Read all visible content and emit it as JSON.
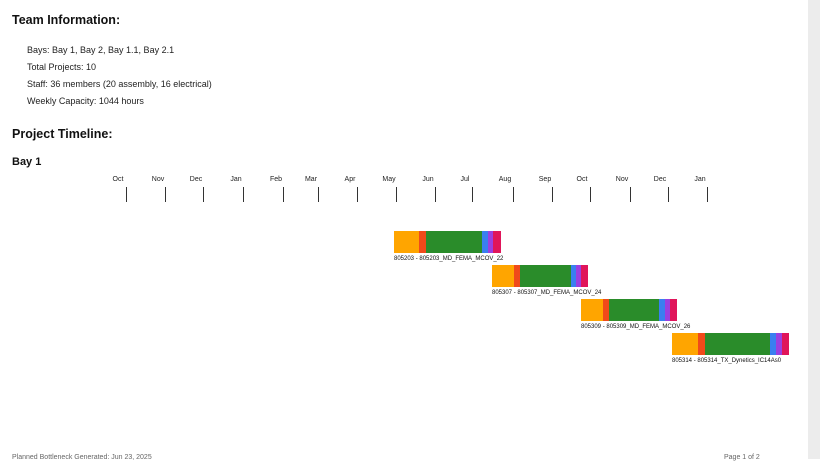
{
  "team": {
    "heading": "Team Information:",
    "bays": "Bays: Bay 1, Bay 2, Bay 1.1, Bay 2.1",
    "projects": "Total Projects: 10",
    "staff": "Staff: 36 members (20 assembly, 16 electrical)",
    "capacity": "Weekly Capacity: 1044 hours"
  },
  "timeline": {
    "heading": "Project Timeline:",
    "bay": "Bay 1",
    "months": [
      "Oct",
      "Nov",
      "Dec",
      "Jan",
      "Feb",
      "Mar",
      "Apr",
      "May",
      "Jun",
      "Jul",
      "Aug",
      "Sep",
      "Oct",
      "Nov",
      "Dec",
      "Jan"
    ]
  },
  "colors": {
    "phase1": "#ffa500",
    "phase2": "#f04a1a",
    "phase3": "#2a8c2a",
    "phase4": "#3a7ff0",
    "phase5": "#9b3fe0",
    "phase6": "#e0155a"
  },
  "projects": [
    {
      "label": "805203 - 805203_MD_FEMA_MCOV_22"
    },
    {
      "label": "805307 - 805307_MD_FEMA_MCOV_24"
    },
    {
      "label": "805309 - 805309_MD_FEMA_MCOV_26"
    },
    {
      "label": "805314 - 805314_TX_Dynetics_IC14As0"
    }
  ],
  "footer": {
    "left": "Planned Bottleneck Generated: Jun 23, 2025",
    "right": "Page 1 of 2"
  }
}
